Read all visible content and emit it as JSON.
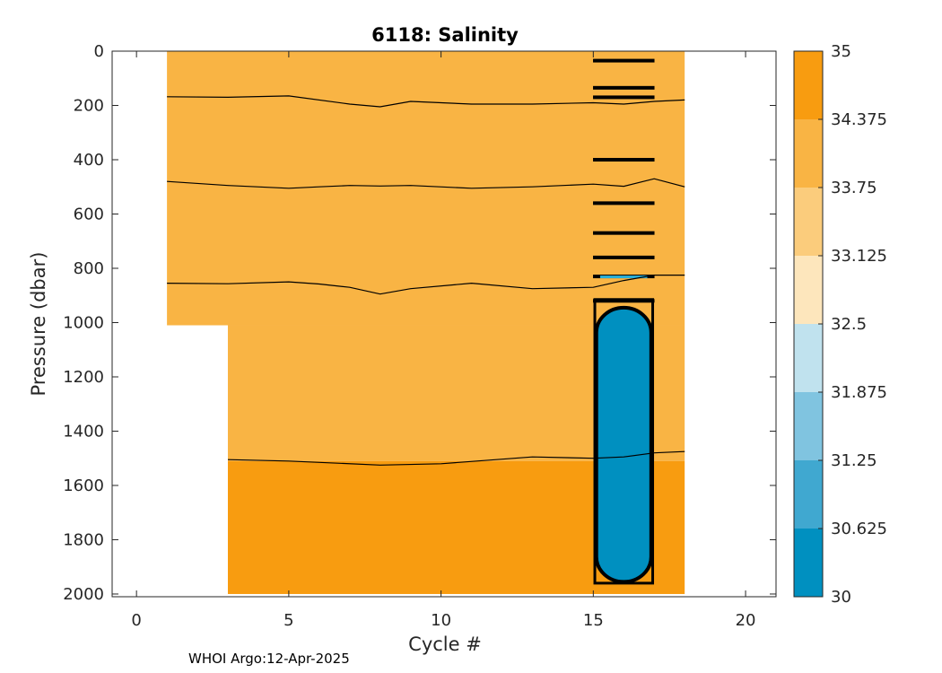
{
  "chart_data": {
    "type": "heatmap",
    "title": "6118:  Salinity",
    "xlabel": "Cycle #",
    "ylabel": "Pressure (dbar)",
    "xlim": [
      -0.8,
      21
    ],
    "ylim": [
      2010,
      0
    ],
    "xticks": [
      0,
      5,
      10,
      15,
      20
    ],
    "yticks": [
      0,
      200,
      400,
      600,
      800,
      1000,
      1200,
      1400,
      1600,
      1800,
      2000
    ],
    "colorbar": {
      "min": 30,
      "max": 35,
      "tick_labels": [
        "35",
        "34.375",
        "33.75",
        "33.125",
        "32.5",
        "31.875",
        "31.25",
        "30.625",
        "30"
      ],
      "levels": [
        {
          "from": 30.0,
          "to": 30.625,
          "color": "#0090c0"
        },
        {
          "from": 30.625,
          "to": 31.25,
          "color": "#40a8d0"
        },
        {
          "from": 31.25,
          "to": 31.875,
          "color": "#80c4e0"
        },
        {
          "from": 31.875,
          "to": 32.5,
          "color": "#c0e2ee"
        },
        {
          "from": 32.5,
          "to": 33.125,
          "color": "#fde6bc"
        },
        {
          "from": 33.125,
          "to": 33.75,
          "color": "#fbcc7c"
        },
        {
          "from": 33.75,
          "to": 34.375,
          "color": "#f9b444"
        },
        {
          "from": 34.375,
          "to": 35.0,
          "color": "#f89c10"
        }
      ]
    },
    "regions": [
      {
        "name": "upper-water",
        "cycles": [
          1,
          18
        ],
        "pressure": [
          0,
          1010
        ],
        "level": "33.75-34.375"
      },
      {
        "name": "intermediate-water",
        "cycles": [
          3,
          18
        ],
        "pressure": [
          1010,
          1510
        ],
        "level": "33.75-34.375"
      },
      {
        "name": "deep-water",
        "cycles": [
          3,
          18
        ],
        "pressure": [
          1510,
          2000
        ],
        "level": "34.375-35"
      },
      {
        "name": "low-salinity-anomaly",
        "cycles": [
          15.1,
          16.9
        ],
        "pressure": [
          945,
          1955
        ],
        "level": "30-30.625"
      }
    ],
    "contours": [
      {
        "name": "contour-upper",
        "cycles": [
          1,
          3,
          5,
          7,
          8,
          9,
          11,
          13,
          15,
          16,
          17,
          18
        ],
        "pressure": [
          168,
          170,
          165,
          195,
          205,
          185,
          195,
          195,
          190,
          195,
          185,
          180
        ]
      },
      {
        "name": "contour-middle",
        "cycles": [
          1,
          3,
          5,
          6,
          7,
          8,
          9,
          11,
          13,
          15,
          16,
          17,
          18
        ],
        "pressure": [
          480,
          495,
          505,
          500,
          495,
          497,
          495,
          505,
          500,
          490,
          498,
          470,
          500
        ]
      },
      {
        "name": "contour-lower",
        "cycles": [
          1,
          3,
          5,
          6,
          7,
          8,
          9,
          11,
          13,
          15,
          16,
          17,
          18
        ],
        "pressure": [
          855,
          857,
          850,
          858,
          870,
          895,
          875,
          855,
          875,
          870,
          845,
          825,
          825
        ]
      },
      {
        "name": "contour-deep",
        "cycles": [
          3,
          5,
          8,
          10,
          13,
          15,
          16,
          17,
          18
        ],
        "pressure": [
          1505,
          1510,
          1525,
          1520,
          1495,
          1500,
          1495,
          1480,
          1475
        ]
      }
    ],
    "anomaly_marks_pressure": [
      35,
      135,
      170,
      400,
      560,
      670,
      760,
      830,
      920
    ]
  },
  "footer": {
    "text": "WHOI Argo:12-Apr-2025"
  }
}
